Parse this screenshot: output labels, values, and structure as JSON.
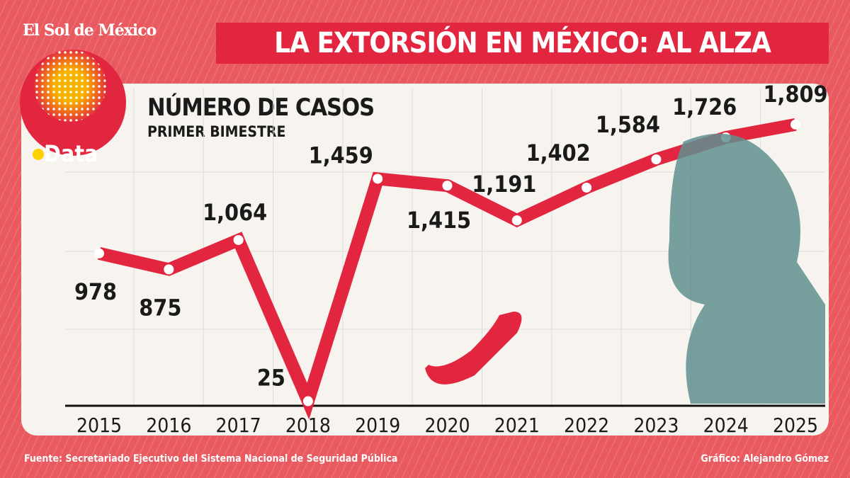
{
  "brand": "El Sol de México",
  "logo_text": "Data",
  "header": {
    "title": "LA EXTORSIÓN EN MÉXICO: AL ALZA"
  },
  "chart_data": {
    "type": "line",
    "title": "NÚMERO DE CASOS",
    "subtitle": "PRIMER BIMESTRE",
    "categories": [
      "2015",
      "2016",
      "2017",
      "2018",
      "2019",
      "2020",
      "2021",
      "2022",
      "2023",
      "2024",
      "2025"
    ],
    "values": [
      978,
      875,
      1064,
      25,
      1459,
      1415,
      1191,
      1402,
      1584,
      1726,
      1809
    ],
    "labels": [
      "978",
      "875",
      "1,064",
      "25",
      "1,459",
      "1,415",
      "1,191",
      "1,402",
      "1,584",
      "1,726",
      "1,809"
    ],
    "grid": true,
    "line_color": "#e3263f"
  },
  "footer": {
    "source": "Fuente: Secretariado Ejecutivo del Sistema Nacional de Seguridad Pública",
    "credit": "Gráfico: Alejandro Gómez"
  }
}
